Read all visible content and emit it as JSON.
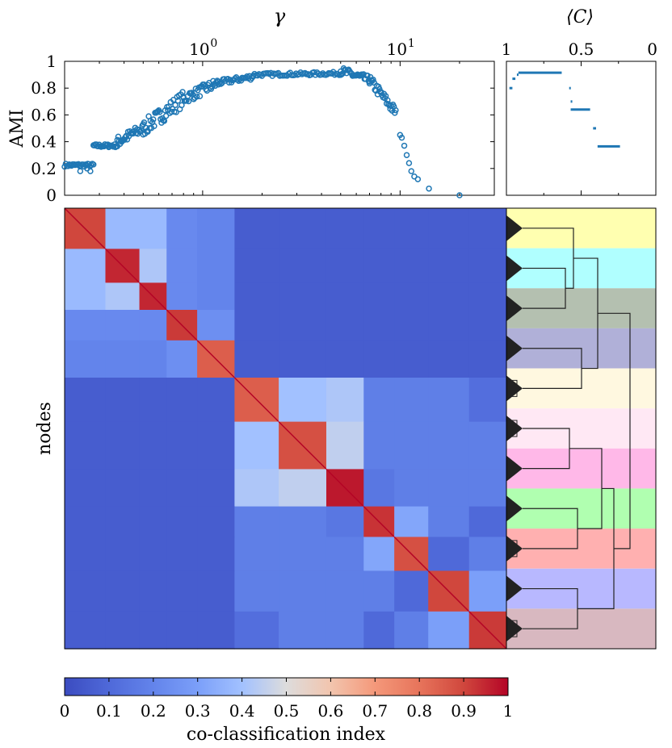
{
  "chart_data": [
    {
      "type": "scatter",
      "title": "γ",
      "ylabel": "AMI",
      "xscale": "log",
      "xlim": [
        0.2,
        30
      ],
      "ylim": [
        0,
        1
      ],
      "x_ticks": [
        {
          "value": 1,
          "label": "10",
          "exp": "0"
        },
        {
          "value": 10,
          "label": "10",
          "exp": "1"
        }
      ],
      "y_ticks": [
        "0",
        "0.2",
        "0.4",
        "0.6",
        "0.8",
        "1"
      ],
      "color": "#1f77b4",
      "segments": [
        {
          "x0": 0.2,
          "x1": 0.28,
          "y0": 0.225,
          "y1": 0.225,
          "n": 26,
          "noise": 0.012
        },
        {
          "x0": 0.28,
          "x1": 0.37,
          "y0": 0.37,
          "y1": 0.37,
          "n": 26,
          "noise": 0.012
        },
        {
          "x0": 0.37,
          "x1": 0.5,
          "y0": 0.4,
          "y1": 0.5,
          "n": 30,
          "noise": 0.04
        },
        {
          "x0": 0.5,
          "x1": 0.8,
          "y0": 0.5,
          "y1": 0.72,
          "n": 45,
          "noise": 0.06
        },
        {
          "x0": 0.8,
          "x1": 1.2,
          "y0": 0.72,
          "y1": 0.84,
          "n": 35,
          "noise": 0.04
        },
        {
          "x0": 1.2,
          "x1": 1.8,
          "y0": 0.84,
          "y1": 0.885,
          "n": 30,
          "noise": 0.02
        },
        {
          "x0": 1.8,
          "x1": 5.0,
          "y0": 0.9,
          "y1": 0.91,
          "n": 60,
          "noise": 0.012
        },
        {
          "x0": 5.0,
          "x1": 7.0,
          "y0": 0.93,
          "y1": 0.86,
          "n": 30,
          "noise": 0.03
        },
        {
          "x0": 7.0,
          "x1": 9.5,
          "y0": 0.86,
          "y1": 0.62,
          "n": 30,
          "noise": 0.04
        }
      ],
      "tail_points": [
        [
          10.0,
          0.45
        ],
        [
          10.2,
          0.43
        ],
        [
          10.5,
          0.37
        ],
        [
          10.8,
          0.3
        ],
        [
          11.1,
          0.24
        ],
        [
          11.4,
          0.18
        ],
        [
          11.8,
          0.14
        ],
        [
          12.3,
          0.12
        ],
        [
          14.0,
          0.05
        ],
        [
          20.0,
          0.0
        ]
      ]
    },
    {
      "type": "scatter",
      "title": "⟨C⟩",
      "xlim": [
        1,
        0
      ],
      "ylim": [
        0,
        1
      ],
      "x_ticks": [
        "1",
        "0.5",
        "0"
      ],
      "color": "#1f77b4",
      "segments": [
        {
          "x0": 0.98,
          "x1": 0.96,
          "y": 0.8
        },
        {
          "x0": 0.96,
          "x1": 0.94,
          "y": 0.87
        },
        {
          "x0": 0.93,
          "x1": 0.92,
          "y": 0.9
        },
        {
          "x0": 0.92,
          "x1": 0.63,
          "y": 0.915
        },
        {
          "x0": 0.58,
          "x1": 0.58,
          "y": 0.8
        },
        {
          "x0": 0.57,
          "x1": 0.57,
          "y": 0.7
        },
        {
          "x0": 0.57,
          "x1": 0.44,
          "y": 0.64
        },
        {
          "x0": 0.42,
          "x1": 0.4,
          "y": 0.5
        },
        {
          "x0": 0.39,
          "x1": 0.24,
          "y": 0.365
        }
      ]
    },
    {
      "type": "heatmap",
      "ylabel": "nodes",
      "blocks": [
        12,
        10,
        8,
        9,
        11,
        13,
        14,
        11,
        9,
        10,
        12,
        11
      ],
      "groups": [
        5,
        7
      ],
      "off_within_group": 0.18,
      "off_between_groups": 0.06,
      "pair_values": [
        [
          0,
          1,
          0.38
        ],
        [
          0,
          2,
          0.38
        ],
        [
          1,
          2,
          0.42
        ],
        [
          0,
          3,
          0.22
        ],
        [
          1,
          3,
          0.22
        ],
        [
          2,
          3,
          0.22
        ],
        [
          0,
          4,
          0.2
        ],
        [
          1,
          4,
          0.2
        ],
        [
          2,
          4,
          0.2
        ],
        [
          3,
          4,
          0.24
        ],
        [
          5,
          6,
          0.4
        ],
        [
          5,
          7,
          0.42
        ],
        [
          6,
          7,
          0.45
        ],
        [
          8,
          9,
          0.32
        ],
        [
          9,
          10,
          0.1
        ],
        [
          10,
          11,
          0.3
        ],
        [
          7,
          8,
          0.15
        ],
        [
          8,
          11,
          0.1
        ],
        [
          5,
          11,
          0.12
        ]
      ],
      "diag_values": [
        0.9,
        0.95,
        0.95,
        0.92,
        0.85,
        0.85,
        0.88,
        0.97,
        0.93,
        0.88,
        0.9,
        0.92
      ]
    },
    {
      "type": "colorbar",
      "xlabel": "co-classification index",
      "x_ticks": [
        "0",
        "0.1",
        "0.2",
        "0.3",
        "0.4",
        "0.5",
        "0.6",
        "0.7",
        "0.8",
        "0.9",
        "1"
      ],
      "colormap": "coolwarm"
    },
    {
      "type": "dendrogram",
      "band_colors": [
        "#ffffb0",
        "#b0ffff",
        "#b4c0b0",
        "#b0b0d8",
        "#fff8e0",
        "#ffe8f4",
        "#ffb8e8",
        "#b0ffb0",
        "#ffb0b0",
        "#b8b8ff",
        "#d8b8c0"
      ]
    }
  ]
}
